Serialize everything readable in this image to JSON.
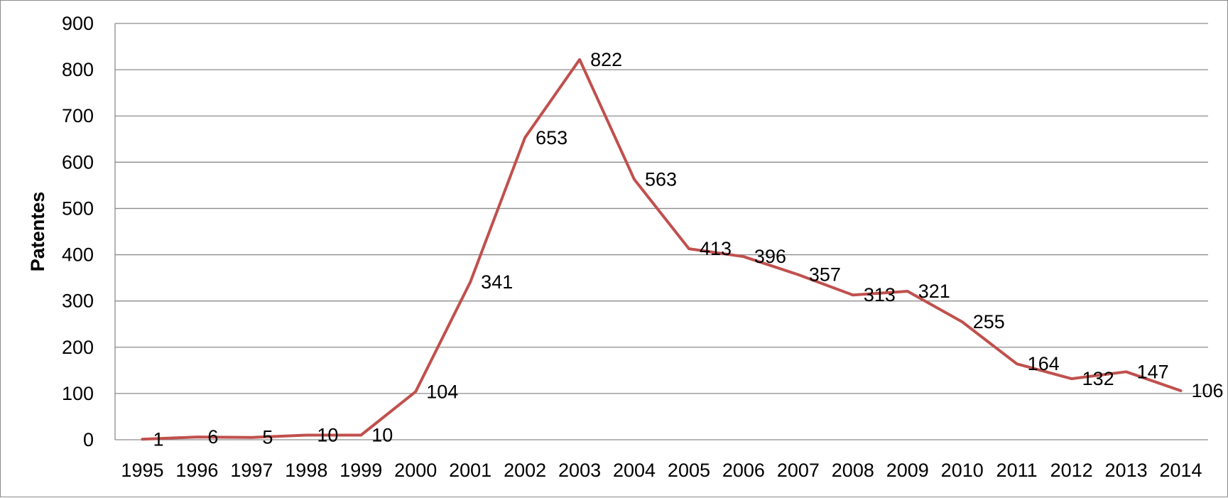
{
  "chart_data": {
    "type": "line",
    "title": "",
    "xlabel": "",
    "ylabel": "Patentes",
    "ylim": [
      0,
      900
    ],
    "yticks": [
      "0",
      "100",
      "200",
      "300",
      "400",
      "500",
      "600",
      "700",
      "800",
      "900"
    ],
    "grid": true,
    "legend": "none",
    "line_color": "#C0504D",
    "categories": [
      "1995",
      "1996",
      "1997",
      "1998",
      "1999",
      "2000",
      "2001",
      "2002",
      "2003",
      "2004",
      "2005",
      "2006",
      "2007",
      "2008",
      "2009",
      "2010",
      "2011",
      "2012",
      "2013",
      "2014"
    ],
    "series": [
      {
        "values": [
          1,
          6,
          5,
          10,
          10,
          104,
          341,
          653,
          822,
          563,
          413,
          396,
          357,
          313,
          321,
          255,
          164,
          132,
          147,
          106
        ],
        "data_labels": [
          "1",
          "6",
          "5",
          "10",
          "10",
          "104",
          "341",
          "653",
          "822",
          "563",
          "413",
          "396",
          "357",
          "313",
          "321",
          "255",
          "164",
          "132",
          "147",
          "106"
        ]
      }
    ]
  }
}
